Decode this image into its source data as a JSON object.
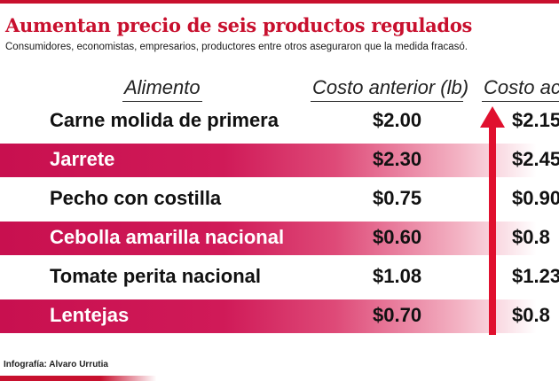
{
  "title": "Aumentan precio de seis productos regulados",
  "subtitle": "Consumidores, economistas, empresarios, productores entre otros aseguraron que la medida fracasó.",
  "credit": "Infografía: Alvaro Urrutia",
  "colors": {
    "accent": "#c8102e",
    "band": "#d01a58"
  },
  "chart_data": {
    "type": "table",
    "columns": [
      "Alimento",
      "Costo anterior (lb)",
      "Costo act"
    ],
    "rows": [
      {
        "alimento": "Carne molida de primera",
        "anterior": "$2.00",
        "actual": "$2.15"
      },
      {
        "alimento": "Jarrete",
        "anterior": "$2.30",
        "actual": "$2.45"
      },
      {
        "alimento": "Pecho con costilla",
        "anterior": "$0.75",
        "actual": "$0.90"
      },
      {
        "alimento": "Cebolla amarilla nacional",
        "anterior": "$0.60",
        "actual": "$0.8"
      },
      {
        "alimento": "Tomate perita nacional",
        "anterior": "$1.08",
        "actual": "$1.23"
      },
      {
        "alimento": "Lentejas",
        "anterior": "$0.70",
        "actual": "$0.8"
      }
    ]
  }
}
